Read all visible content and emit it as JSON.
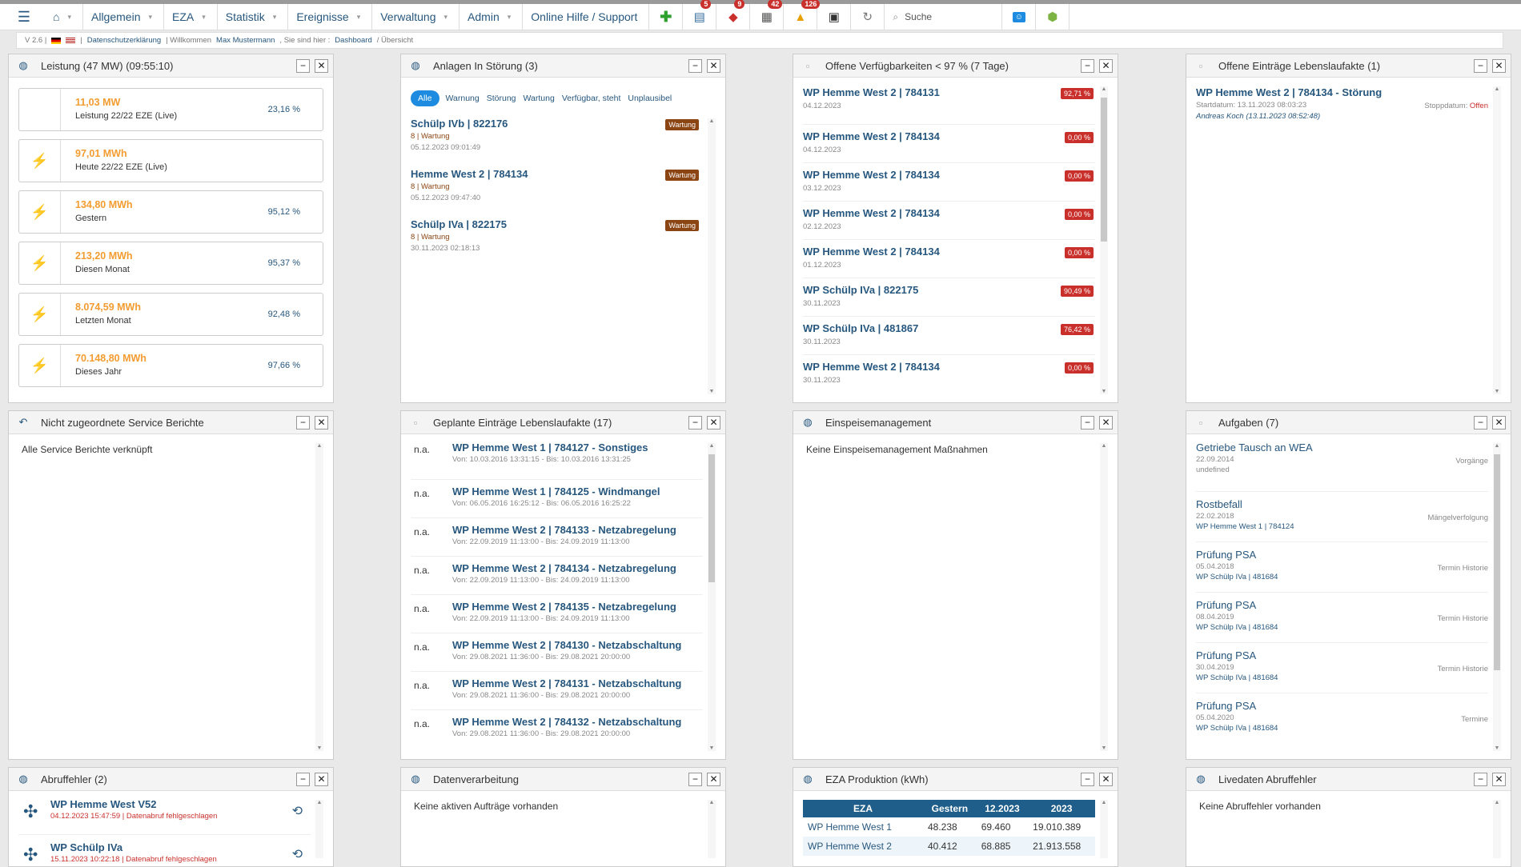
{
  "topbar": {
    "nav": [
      "Allgemein",
      "EZA",
      "Statistik",
      "Ereignisse",
      "Verwaltung",
      "Admin"
    ],
    "help": "Online Hilfe / Support",
    "badges": [
      "5",
      "9",
      "42",
      "126"
    ],
    "search_placeholder": "Suche",
    "icons": [
      "menu-icon",
      "home-icon",
      "plus-icon",
      "document-icon",
      "bell-icon",
      "calendar-icon",
      "warning-icon",
      "database-icon",
      "refresh-icon",
      "search-icon",
      "user-icon",
      "android-icon"
    ]
  },
  "subbar": {
    "version": "V 2.6 |",
    "privacy": "Datenschutzerklärung",
    "welcome": "| Willkommen",
    "user": "Max Mustermann",
    "you_are": ",   Sie sind hier :",
    "crumb1": "Dashboard",
    "crumb2": "/ Übersicht"
  },
  "panels": {
    "leistung": {
      "title": "Leistung (47 MW) (09:55:10)",
      "cards": [
        {
          "value": "11,03 MW",
          "label": "Leistung 22/22 EZE (Live)",
          "pct": "23,16 %",
          "icon": ""
        },
        {
          "value": "97,01 MWh",
          "label": "Heute 22/22 EZE (Live)",
          "pct": "",
          "icon": "⚡"
        },
        {
          "value": "134,80 MWh",
          "label": "Gestern",
          "pct": "95,12 %",
          "icon": "⚡"
        },
        {
          "value": "213,20 MWh",
          "label": "Diesen Monat",
          "pct": "95,37 %",
          "icon": "⚡"
        },
        {
          "value": "8.074,59 MWh",
          "label": "Letzten Monat",
          "pct": "92,48 %",
          "icon": "⚡"
        },
        {
          "value": "70.148,80 MWh",
          "label": "Dieses Jahr",
          "pct": "97,66 %",
          "icon": "⚡"
        }
      ]
    },
    "stoerung": {
      "title": "Anlagen In Störung (3)",
      "filters": [
        "Alle",
        "Warnung",
        "Störung",
        "Wartung",
        "Verfügbar, steht",
        "Unplausibel"
      ],
      "items": [
        {
          "name": "Schülp IVb | 822176",
          "sub": "8 | Wartung",
          "date": "05.12.2023 09:01:49",
          "tag": "Wartung"
        },
        {
          "name": "Hemme West 2 | 784134",
          "sub": "8 | Wartung",
          "date": "05.12.2023 09:47:40",
          "tag": "Wartung"
        },
        {
          "name": "Schülp IVa | 822175",
          "sub": "8 | Wartung",
          "date": "30.11.2023 02:18:13",
          "tag": "Wartung"
        }
      ]
    },
    "verfueg": {
      "title": "Offene Verfügbarkeiten < 97 % (7 Tage)",
      "items": [
        {
          "name": "WP Hemme West 2 | 784131",
          "date": "04.12.2023",
          "tag": "92,71 %"
        },
        {
          "name": "WP Hemme West 2 | 784134",
          "date": "04.12.2023",
          "tag": "0,00 %"
        },
        {
          "name": "WP Hemme West 2 | 784134",
          "date": "03.12.2023",
          "tag": "0,00 %"
        },
        {
          "name": "WP Hemme West 2 | 784134",
          "date": "02.12.2023",
          "tag": "0,00 %"
        },
        {
          "name": "WP Hemme West 2 | 784134",
          "date": "01.12.2023",
          "tag": "0,00 %"
        },
        {
          "name": "WP Schülp IVa | 822175",
          "date": "30.11.2023",
          "tag": "90,49 %"
        },
        {
          "name": "WP Schülp IVa | 481867",
          "date": "30.11.2023",
          "tag": "76,42 %"
        },
        {
          "name": "WP Hemme West 2 | 784134",
          "date": "30.11.2023",
          "tag": "0,00 %"
        }
      ]
    },
    "lebenslauf": {
      "title": "Offene Einträge Lebenslaufakte (1)",
      "item": {
        "name": "WP Hemme West 2 | 784134 - Störung",
        "start": "Startdatum: 13.11.2023 08:03:23",
        "stop_label": "Stoppdatum:",
        "stop_value": "Offen",
        "user": "Andreas Koch (13.11.2023 08:52:48)"
      }
    },
    "service": {
      "title": "Nicht zugeordnete Service Berichte",
      "text": "Alle Service Berichte verknüpft"
    },
    "geplant": {
      "title": "Geplante Einträge Lebenslaufakte (17)",
      "items": [
        {
          "na": "n.a.",
          "name": "WP Hemme West 1 | 784127 - Sonstiges",
          "time": "Von: 10.03.2016 13:31:15 - Bis: 10.03.2016 13:31:25"
        },
        {
          "na": "n.a.",
          "name": "WP Hemme West 1 | 784125 - Windmangel",
          "time": "Von: 06.05.2016 16:25:12 - Bis: 06.05.2016 16:25:22"
        },
        {
          "na": "n.a.",
          "name": "WP Hemme West 2 | 784133 - Netzabregelung",
          "time": "Von: 22.09.2019 11:13:00 - Bis: 24.09.2019 11:13:00"
        },
        {
          "na": "n.a.",
          "name": "WP Hemme West 2 | 784134 - Netzabregelung",
          "time": "Von: 22.09.2019 11:13:00 - Bis: 24.09.2019 11:13:00"
        },
        {
          "na": "n.a.",
          "name": "WP Hemme West 2 | 784135 - Netzabregelung",
          "time": "Von: 22.09.2019 11:13:00 - Bis: 24.09.2019 11:13:00"
        },
        {
          "na": "n.a.",
          "name": "WP Hemme West 2 | 784130 - Netzabschaltung",
          "time": "Von: 29.08.2021 11:36:00 - Bis: 29.08.2021 20:00:00"
        },
        {
          "na": "n.a.",
          "name": "WP Hemme West 2 | 784131 - Netzabschaltung",
          "time": "Von: 29.08.2021 11:36:00 - Bis: 29.08.2021 20:00:00"
        },
        {
          "na": "n.a.",
          "name": "WP Hemme West 2 | 784132 - Netzabschaltung",
          "time": "Von: 29.08.2021 11:36:00 - Bis: 29.08.2021 20:00:00"
        }
      ]
    },
    "einspeise": {
      "title": "Einspeisemanagement",
      "text": "Keine Einspeisemanagement Maßnahmen"
    },
    "aufgaben": {
      "title": "Aufgaben (7)",
      "items": [
        {
          "name": "Getriebe Tausch an WEA",
          "date": "22.09.2014",
          "sub": "undefined",
          "cat": "Vorgänge"
        },
        {
          "name": "Rostbefall",
          "date": "22.02.2018",
          "sub": "WP Hemme West 1 | 784124",
          "cat": "Mängelverfolgung"
        },
        {
          "name": "Prüfung PSA",
          "date": "05.04.2018",
          "sub": "WP Schülp IVa | 481684",
          "cat": "Termin Historie"
        },
        {
          "name": "Prüfung PSA",
          "date": "08.04.2019",
          "sub": "WP Schülp IVa | 481684",
          "cat": "Termin Historie"
        },
        {
          "name": "Prüfung PSA",
          "date": "30.04.2019",
          "sub": "WP Schülp IVa | 481684",
          "cat": "Termin Historie"
        },
        {
          "name": "Prüfung PSA",
          "date": "05.04.2020",
          "sub": "WP Schülp IVa | 481684",
          "cat": "Termine"
        }
      ]
    },
    "abruf": {
      "title": "Abruffehler (2)",
      "items": [
        {
          "name": "WP Hemme West V52",
          "sub": "04.12.2023 15:47:59 | Datenabruf fehlgeschlagen"
        },
        {
          "name": "WP Schülp IVa",
          "sub": "15.11.2023 10:22:18 | Datenabruf fehlgeschlagen"
        }
      ]
    },
    "daten": {
      "title": "Datenverarbeitung",
      "text": "Keine aktiven Aufträge vorhanden"
    },
    "eza": {
      "title": "EZA Produktion (kWh)",
      "headers": [
        "EZA",
        "Gestern",
        "12.2023",
        "2023"
      ],
      "rows": [
        [
          "WP Hemme West 1",
          "48.238",
          "69.460",
          "19.010.389"
        ],
        [
          "WP Hemme West 2",
          "40.412",
          "68.885",
          "21.913.558"
        ]
      ]
    },
    "live": {
      "title": "Livedaten Abruffehler",
      "text": "Keine Abruffehler vorhanden"
    }
  }
}
